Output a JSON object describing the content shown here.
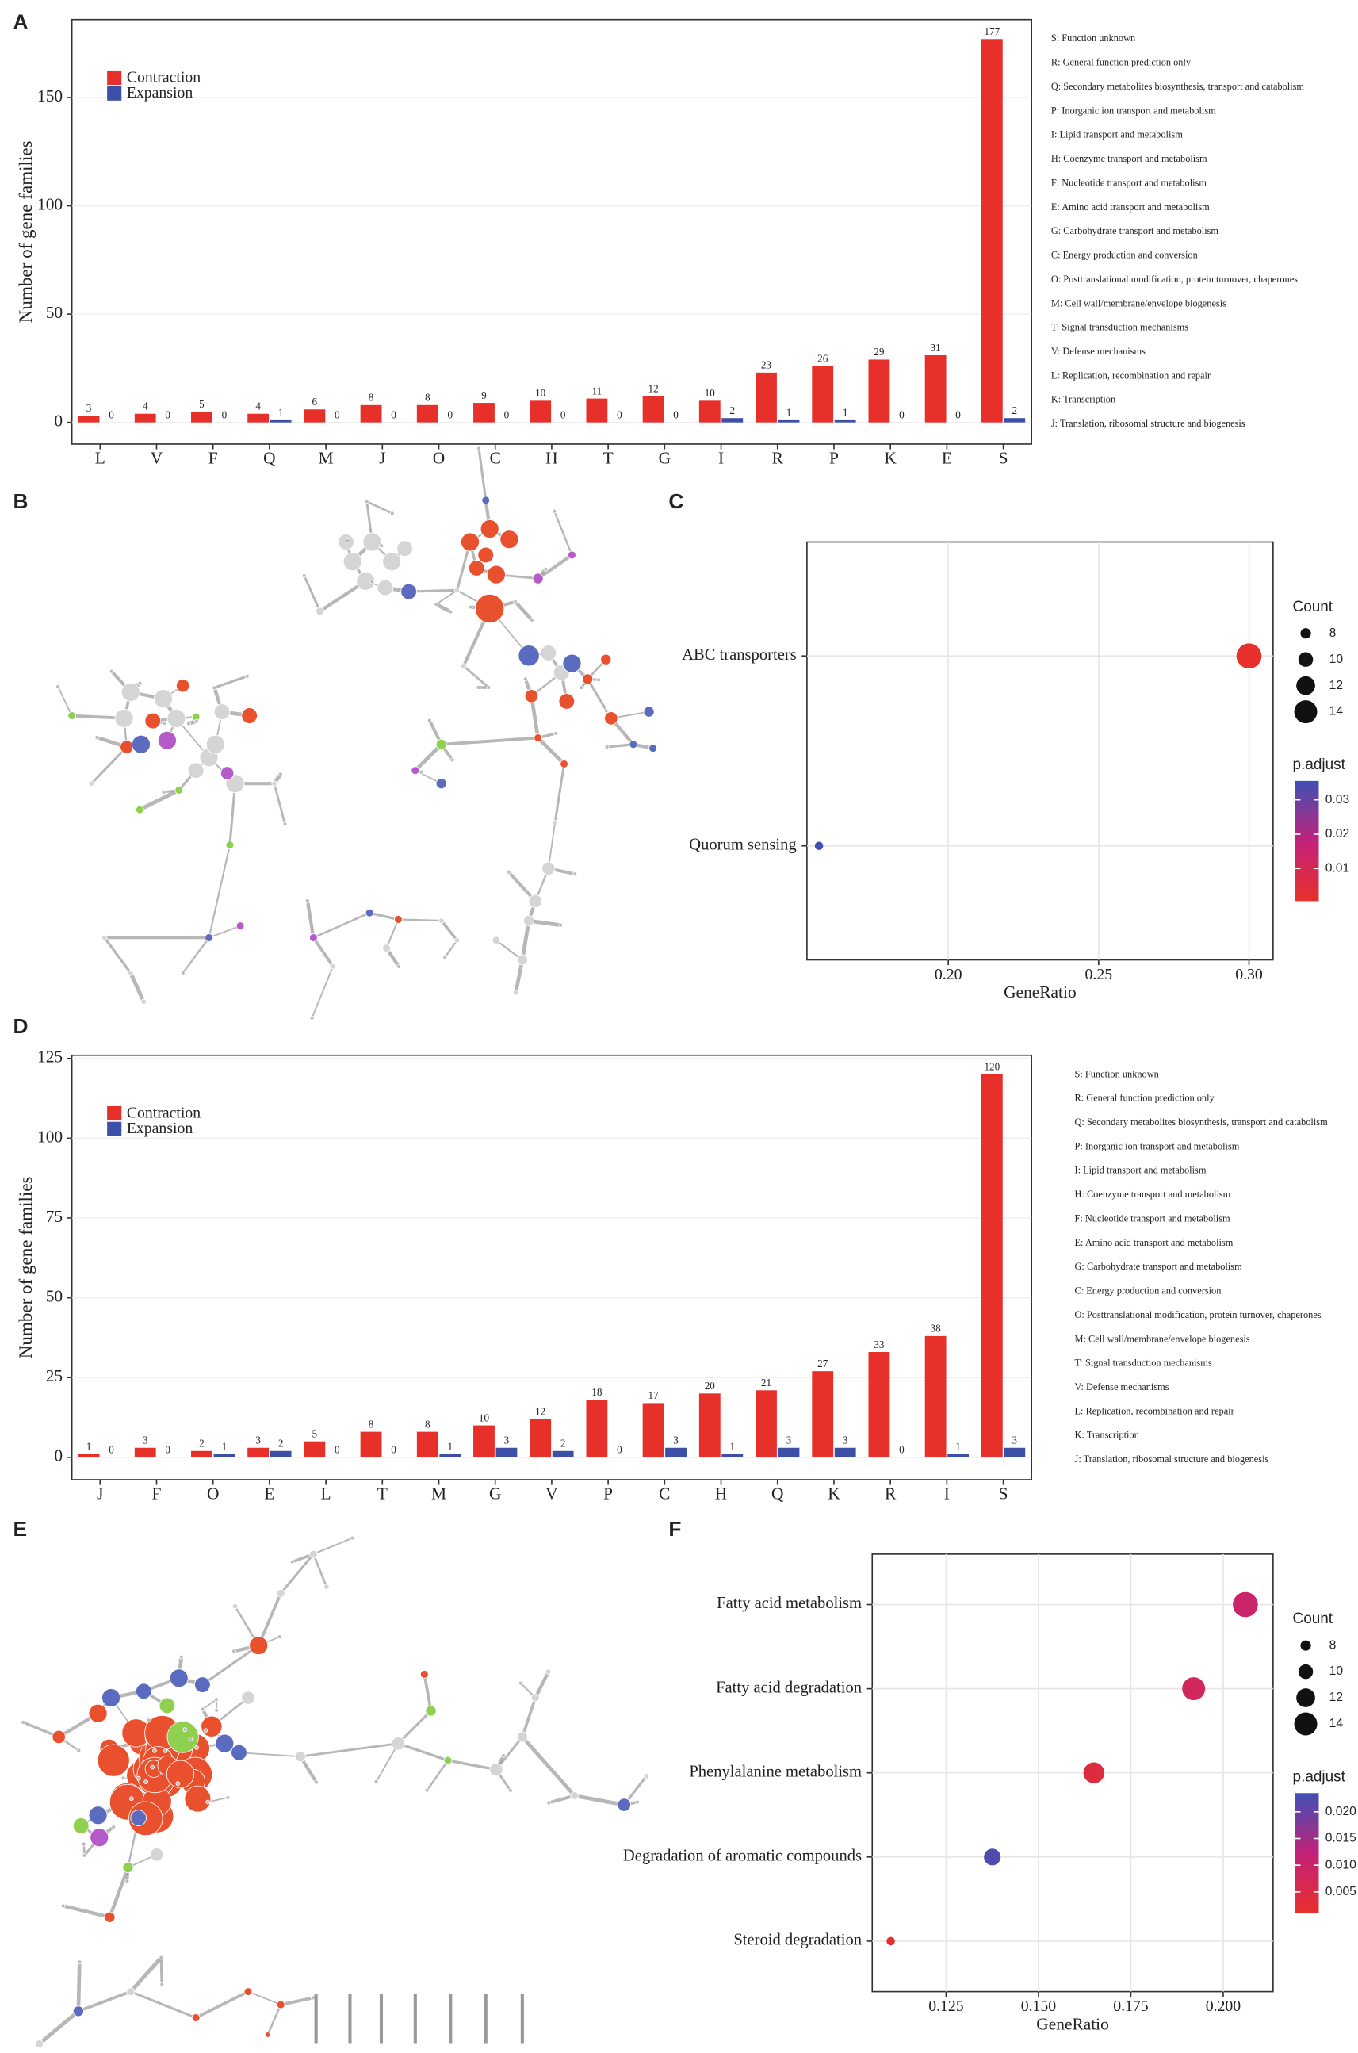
{
  "panels": [
    "A",
    "B",
    "C",
    "D",
    "E",
    "F"
  ],
  "chart_data": [
    {
      "type": "bar",
      "ylabel": "Number of gene families",
      "categories": [
        "L",
        "V",
        "F",
        "Q",
        "M",
        "J",
        "O",
        "C",
        "H",
        "T",
        "G",
        "I",
        "R",
        "P",
        "K",
        "E",
        "S"
      ],
      "series": [
        {
          "name": "Contraction",
          "color": "#e8302a",
          "values": [
            3,
            4,
            5,
            4,
            6,
            8,
            8,
            9,
            10,
            11,
            12,
            10,
            23,
            26,
            29,
            31,
            177
          ]
        },
        {
          "name": "Expansion",
          "color": "#3d50a8",
          "values": [
            0,
            0,
            0,
            1,
            0,
            0,
            0,
            0,
            0,
            0,
            0,
            2,
            1,
            1,
            0,
            0,
            2
          ]
        }
      ],
      "ylim": [
        -10,
        186
      ],
      "yticks": [
        0,
        50,
        100,
        150
      ],
      "grid": true,
      "legend": "top-left",
      "category_descriptions": [
        "S: Function unknown",
        "R: General function prediction only",
        "Q: Secondary metabolites biosynthesis, transport and catabolism",
        "P: Inorganic ion transport and metabolism",
        "I: Lipid transport and metabolism",
        "H: Coenzyme transport and metabolism",
        "F: Nucleotide transport and metabolism",
        "E: Amino acid transport and metabolism",
        "G: Carbohydrate transport and metabolism",
        "C: Energy production and conversion",
        "O: Posttranslational modification, protein turnover, chaperones",
        "M: Cell wall/membrane/envelope biogenesis",
        "T: Signal transduction mechanisms",
        "V: Defense mechanisms",
        "L: Replication, recombination and repair",
        "K: Transcription",
        "J: Translation, ribosomal structure and biogenesis"
      ]
    },
    {
      "type": "dot",
      "xlabel": "GeneRatio",
      "categories": [
        "ABC transporters",
        "Quorum sensing"
      ],
      "values": [
        0.3,
        0.157
      ],
      "counts": [
        15,
        7
      ],
      "padjust": [
        0.001,
        0.035
      ],
      "xlim": [
        0.153,
        0.308
      ],
      "xticks": [
        {
          "value": 0.2,
          "label": "0.20"
        },
        {
          "value": 0.25,
          "label": "0.25"
        },
        {
          "value": 0.3,
          "label": "0.30"
        }
      ],
      "grid": true,
      "size_title": "Count",
      "size_ticks": [
        8,
        10,
        12,
        14
      ],
      "color_title": "p.adjust",
      "color_lim": [
        0.0005,
        0.0355
      ],
      "color_ticks": [
        0.01,
        0.02,
        0.03
      ],
      "colors": [
        "#e8302a",
        "#c2227a",
        "#3f51b5"
      ]
    },
    {
      "type": "bar",
      "ylabel": "Number of gene families",
      "categories": [
        "J",
        "F",
        "O",
        "E",
        "L",
        "T",
        "M",
        "G",
        "V",
        "P",
        "C",
        "H",
        "Q",
        "K",
        "R",
        "I",
        "S"
      ],
      "series": [
        {
          "name": "Contraction",
          "color": "#e8302a",
          "values": [
            1,
            3,
            2,
            3,
            5,
            8,
            8,
            10,
            12,
            18,
            17,
            20,
            21,
            27,
            33,
            38,
            120
          ]
        },
        {
          "name": "Expansion",
          "color": "#3d50a8",
          "values": [
            0,
            0,
            1,
            2,
            0,
            0,
            1,
            3,
            2,
            0,
            3,
            1,
            3,
            3,
            0,
            1,
            3
          ]
        }
      ],
      "ylim": [
        -7,
        126
      ],
      "yticks": [
        0,
        25,
        50,
        75,
        100,
        125
      ],
      "grid": true,
      "legend": "top-left",
      "category_descriptions": [
        "S: Function unknown",
        "R: General function prediction only",
        "Q: Secondary metabolites biosynthesis, transport and catabolism",
        "P: Inorganic ion transport and metabolism",
        "I: Lipid transport and metabolism",
        "H: Coenzyme transport and metabolism",
        "F: Nucleotide transport and metabolism",
        "E: Amino acid transport and metabolism",
        "G: Carbohydrate transport and metabolism",
        "C: Energy production and conversion",
        "O: Posttranslational modification, protein turnover, chaperones",
        "M: Cell wall/membrane/envelope biogenesis",
        "T: Signal transduction mechanisms",
        "V: Defense mechanisms",
        "L: Replication, recombination and repair",
        "K: Transcription",
        "J: Translation, ribosomal structure and biogenesis"
      ]
    },
    {
      "type": "dot",
      "xlabel": "GeneRatio",
      "categories": [
        "Fatty acid metabolism",
        "Fatty acid degradation",
        "Phenylalanine metabolism",
        "Degradation of aromatic compounds",
        "Steroid degradation"
      ],
      "values": [
        0.206,
        0.192,
        0.165,
        0.1375,
        0.11
      ],
      "counts": [
        15,
        14,
        13,
        11,
        7
      ],
      "padjust": [
        0.01,
        0.008,
        0.004,
        0.022,
        0.002
      ],
      "xlim": [
        0.105,
        0.2135
      ],
      "xticks": [
        0.125,
        {
          "value": 0.15,
          "label": "0.150"
        },
        0.175,
        {
          "value": 0.2,
          "label": "0.200"
        }
      ],
      "grid": true,
      "size_title": "Count",
      "size_ticks": [
        8,
        10,
        12,
        14
      ],
      "color_title": "p.adjust",
      "color_lim": [
        0.001,
        0.0235
      ],
      "color_ticks": [
        0.005,
        {
          "value": 0.01,
          "label": "0.010"
        },
        0.015,
        {
          "value": 0.02,
          "label": "0.020"
        }
      ],
      "colors": [
        "#e8302a",
        "#c2227a",
        "#3f51b5"
      ]
    }
  ]
}
